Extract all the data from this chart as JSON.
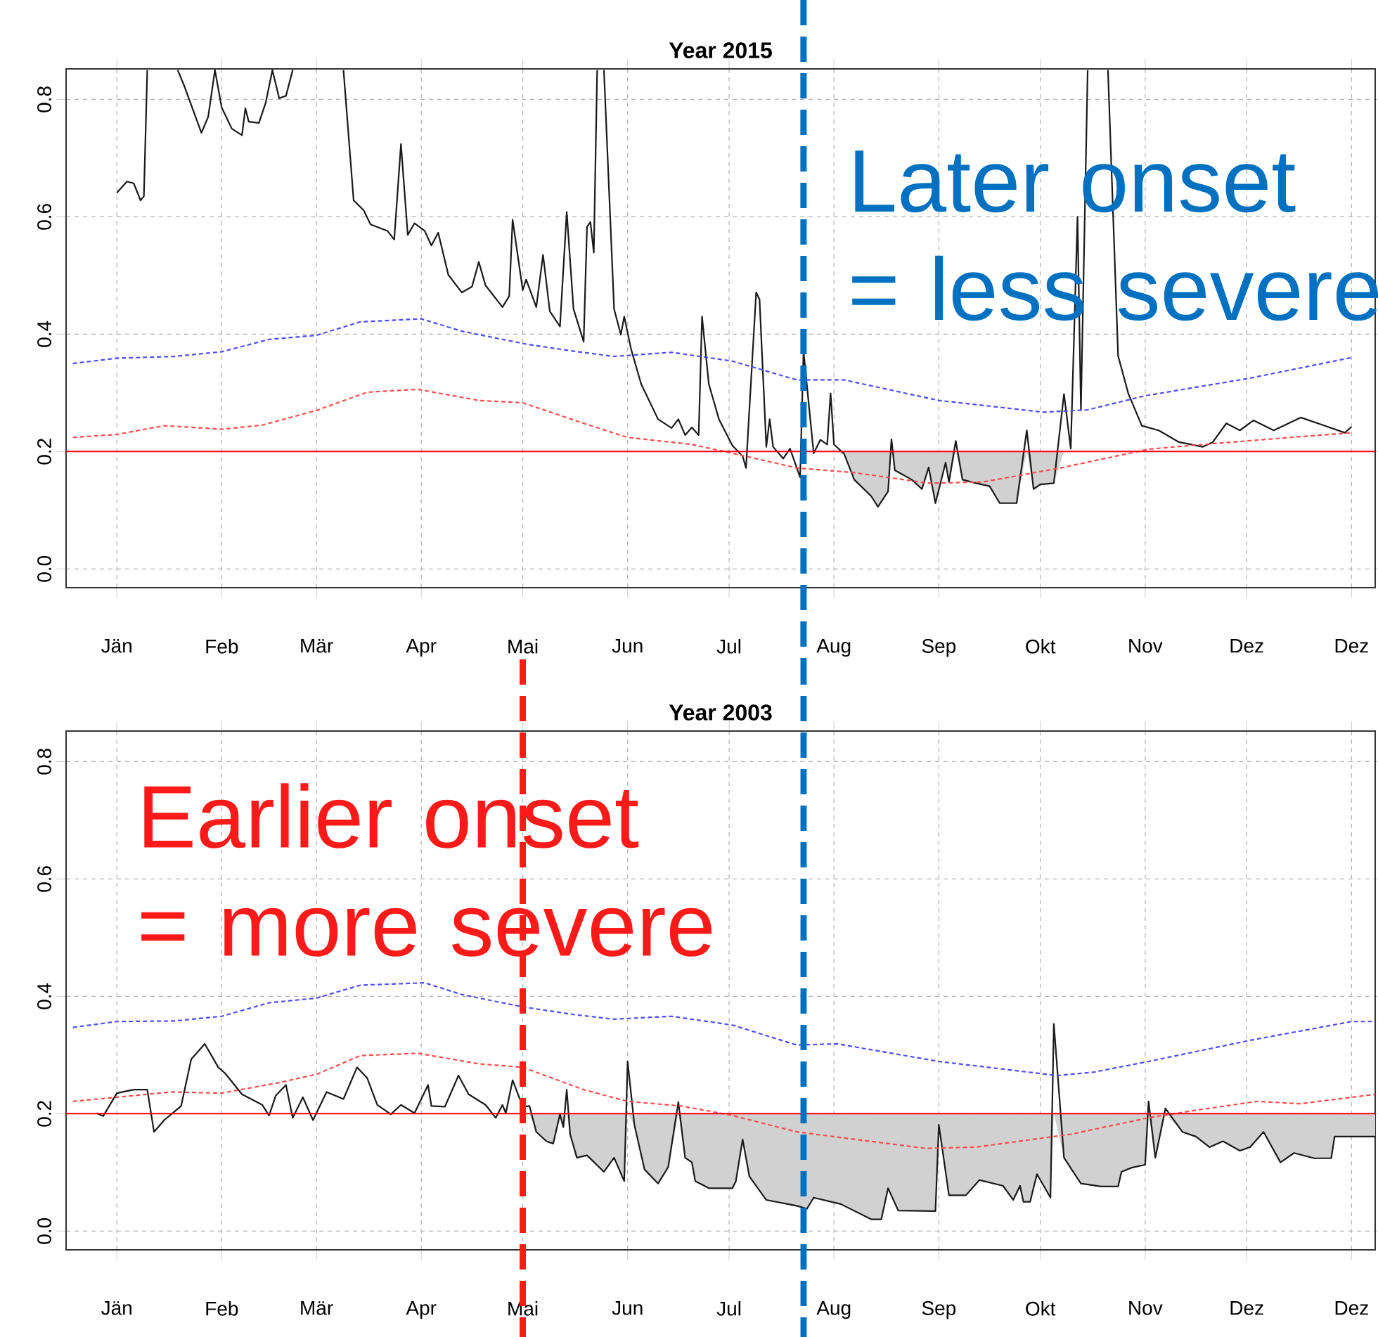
{
  "chart_data": [
    {
      "type": "line",
      "title": "Year 2015",
      "xlim": [
        "2014-12-17",
        "2016-01-08"
      ],
      "ylim": [
        -0.032,
        0.852
      ],
      "xticks": [
        {
          "value": "2015-01-01",
          "label": "Jän"
        },
        {
          "value": "2015-02-01",
          "label": "Feb"
        },
        {
          "value": "2015-03-01",
          "label": "Mär"
        },
        {
          "value": "2015-04-01",
          "label": "Apr"
        },
        {
          "value": "2015-05-01",
          "label": "Mai"
        },
        {
          "value": "2015-06-01",
          "label": "Jun"
        },
        {
          "value": "2015-07-01",
          "label": "Jul"
        },
        {
          "value": "2015-08-01",
          "label": "Aug"
        },
        {
          "value": "2015-09-01",
          "label": "Sep"
        },
        {
          "value": "2015-10-01",
          "label": "Okt"
        },
        {
          "value": "2015-11-01",
          "label": "Nov"
        },
        {
          "value": "2015-12-01",
          "label": "Dez"
        },
        {
          "value": "2016-01-01",
          "label": "Dez"
        }
      ],
      "yticks": [
        {
          "value": 0,
          "label": "0.0"
        },
        {
          "value": 0.2,
          "label": "0.2"
        },
        {
          "value": 0.4,
          "label": "0.4"
        },
        {
          "value": 0.6,
          "label": "0.6"
        },
        {
          "value": 0.8,
          "label": "0.8"
        }
      ],
      "grid": true,
      "series": [
        {
          "color": "#1a1a1a",
          "line_style": "solid",
          "x": [
            "2015-01-01",
            "2015-01-04",
            "2015-01-06",
            "2015-01-08",
            "2015-01-09",
            "2015-01-10",
            "2015-01-14",
            "2015-01-19",
            "2015-01-21",
            "2015-01-26",
            "2015-01-28",
            "2015-01-30",
            "2015-02-01",
            "2015-02-04",
            "2015-02-07",
            "2015-02-08",
            "2015-02-09",
            "2015-02-12",
            "2015-02-14",
            "2015-02-16",
            "2015-02-18",
            "2015-02-20",
            "2015-02-22",
            "2015-03-01",
            "2015-03-09",
            "2015-03-12",
            "2015-03-15",
            "2015-03-17",
            "2015-03-22",
            "2015-03-24",
            "2015-03-26",
            "2015-03-28",
            "2015-03-30",
            "2015-04-02",
            "2015-04-04",
            "2015-04-06",
            "2015-04-09",
            "2015-04-13",
            "2015-04-16",
            "2015-04-18",
            "2015-04-20",
            "2015-04-25",
            "2015-04-27",
            "2015-04-28",
            "2015-05-01",
            "2015-05-02",
            "2015-05-05",
            "2015-05-07",
            "2015-05-09",
            "2015-05-12",
            "2015-05-14",
            "2015-05-16",
            "2015-05-19",
            "2015-05-20",
            "2015-05-21",
            "2015-05-22",
            "2015-05-23",
            "2015-05-24",
            "2015-05-25",
            "2015-05-28",
            "2015-05-30",
            "2015-05-31",
            "2015-06-02",
            "2015-06-05",
            "2015-06-10",
            "2015-06-14",
            "2015-06-16",
            "2015-06-18",
            "2015-06-20",
            "2015-06-22",
            "2015-06-23",
            "2015-06-25",
            "2015-06-28",
            "2015-07-02",
            "2015-07-05",
            "2015-07-06",
            "2015-07-09",
            "2015-07-10",
            "2015-07-12",
            "2015-07-13",
            "2015-07-14",
            "2015-07-17",
            "2015-07-19",
            "2015-07-22",
            "2015-07-23",
            "2015-07-26",
            "2015-07-28",
            "2015-07-30",
            "2015-07-31",
            "2015-08-01",
            "2015-08-04",
            "2015-08-07",
            "2015-08-12",
            "2015-08-14",
            "2015-08-17",
            "2015-08-18",
            "2015-08-19",
            "2015-08-24",
            "2015-08-27",
            "2015-08-29",
            "2015-08-31",
            "2015-09-03",
            "2015-09-04",
            "2015-09-06",
            "2015-09-08",
            "2015-09-12",
            "2015-09-16",
            "2015-09-19",
            "2015-09-24",
            "2015-09-27",
            "2015-09-29",
            "2015-10-01",
            "2015-10-05",
            "2015-10-08",
            "2015-10-10",
            "2015-10-12",
            "2015-10-13",
            "2015-10-15",
            "2015-10-18",
            "2015-10-21",
            "2015-10-24",
            "2015-10-27",
            "2015-10-31",
            "2015-11-05",
            "2015-11-11",
            "2015-11-18",
            "2015-11-21",
            "2015-11-25",
            "2015-11-29",
            "2015-12-03",
            "2015-12-09",
            "2015-12-17",
            "2015-12-24",
            "2015-12-30",
            "2016-01-01"
          ],
          "values": [
            0.641,
            0.66,
            0.657,
            0.628,
            0.635,
            0.85,
            null,
            0.85,
            0.822,
            0.743,
            0.77,
            0.85,
            0.786,
            0.75,
            0.739,
            0.785,
            0.762,
            0.76,
            0.794,
            0.85,
            0.802,
            0.806,
            0.85,
            null,
            0.85,
            0.628,
            0.611,
            0.587,
            0.576,
            0.561,
            0.724,
            0.569,
            0.589,
            0.576,
            0.551,
            0.573,
            0.501,
            0.471,
            0.481,
            0.523,
            0.483,
            0.446,
            0.465,
            0.595,
            0.475,
            0.493,
            0.446,
            0.535,
            0.439,
            0.413,
            0.608,
            0.443,
            0.387,
            0.583,
            0.591,
            0.539,
            0.85,
            null,
            0.85,
            0.443,
            0.399,
            0.43,
            0.375,
            0.315,
            0.255,
            0.24,
            0.255,
            0.228,
            0.241,
            0.228,
            0.43,
            0.315,
            0.255,
            0.21,
            0.192,
            0.172,
            0.471,
            0.459,
            0.208,
            0.255,
            0.208,
            0.188,
            0.205,
            0.156,
            0.371,
            0.197,
            0.22,
            0.212,
            0.299,
            0.212,
            0.196,
            0.152,
            0.124,
            0.106,
            0.132,
            0.221,
            0.168,
            0.152,
            0.136,
            0.173,
            0.112,
            0.181,
            0.148,
            0.218,
            0.152,
            0.146,
            0.141,
            0.112,
            0.112,
            0.236,
            0.136,
            0.144,
            0.146,
            0.298,
            0.205,
            0.6,
            0.271,
            0.85,
            null,
            0.85,
            0.363,
            0.299,
            0.244,
            0.236,
            0.216,
            0.208,
            0.216,
            0.248,
            0.236,
            0.253,
            0.236,
            0.258,
            0.244,
            0.232,
            0.242
          ],
          "lower": [
            null,
            null,
            null,
            null,
            null,
            null,
            null,
            null,
            null,
            null,
            null,
            null,
            null,
            null,
            null,
            null,
            null,
            null,
            null,
            null,
            null,
            null,
            null,
            null,
            null,
            null,
            null,
            null,
            null,
            null,
            null,
            null,
            null,
            null,
            null,
            null,
            null,
            null,
            null,
            null,
            null,
            null,
            null,
            null,
            null,
            null,
            null,
            null,
            null,
            null,
            null,
            null,
            null,
            null,
            null,
            null,
            null,
            null,
            null,
            null,
            null,
            null,
            null,
            null,
            null,
            null,
            null,
            null,
            null,
            null,
            null,
            null,
            null,
            null,
            null,
            null,
            null,
            null,
            null,
            null,
            null,
            null,
            null,
            null,
            null,
            null,
            null,
            null,
            null,
            0.2,
            0.196,
            0.152,
            0.124,
            0.106,
            0.132,
            0.2,
            0.168,
            0.152,
            0.136,
            0.173,
            0.112,
            0.181,
            0.148,
            0.2,
            0.152,
            0.146,
            0.141,
            0.112,
            0.112,
            0.2,
            0.136,
            0.144,
            0.146,
            0.2,
            null,
            null,
            null,
            null,
            null,
            null,
            null,
            null,
            null,
            null,
            null,
            null,
            null,
            null,
            null,
            null,
            null,
            null,
            null,
            null,
            null
          ],
          "upper": [
            null,
            null,
            null,
            null,
            null,
            null,
            null,
            null,
            null,
            null,
            null,
            null,
            null,
            null,
            null,
            null,
            null,
            null,
            null,
            null,
            null,
            null,
            null,
            null,
            null,
            null,
            null,
            null,
            null,
            null,
            null,
            null,
            null,
            null,
            null,
            null,
            null,
            null,
            null,
            null,
            null,
            null,
            null,
            null,
            null,
            null,
            null,
            null,
            null,
            null,
            null,
            null,
            null,
            null,
            null,
            null,
            null,
            null,
            null,
            null,
            null,
            null,
            null,
            null,
            null,
            null,
            null,
            null,
            null,
            null,
            null,
            null,
            null,
            null,
            null,
            null,
            null,
            null,
            null,
            null,
            null,
            null,
            null,
            null,
            null,
            null,
            null,
            null,
            null,
            0.2,
            0.2,
            0.2,
            0.2,
            0.2,
            0.2,
            0.2,
            0.2,
            0.2,
            0.2,
            0.2,
            0.2,
            0.2,
            0.2,
            0.2,
            0.2,
            0.2,
            0.2,
            0.2,
            0.2,
            0.2,
            0.2,
            0.2,
            0.2,
            0.2,
            null,
            null,
            null,
            null,
            null,
            null,
            null,
            null,
            null,
            null,
            null,
            null,
            null,
            null,
            null,
            null,
            null,
            null,
            null,
            null,
            null
          ]
        },
        {
          "color": "#4d4dff",
          "line_style": "dashed",
          "x": [
            "2014-12-19",
            "2015-01-01",
            "2015-01-18",
            "2015-02-01",
            "2015-02-15",
            "2015-03-01",
            "2015-03-14",
            "2015-04-01",
            "2015-04-13",
            "2015-05-02",
            "2015-05-16",
            "2015-05-28",
            "2015-06-14",
            "2015-07-02",
            "2015-07-21",
            "2015-08-04",
            "2015-09-01",
            "2015-10-02",
            "2015-10-15",
            "2015-11-01",
            "2015-12-02",
            "2016-01-01"
          ],
          "values": [
            0.35,
            0.359,
            0.362,
            0.37,
            0.391,
            0.398,
            0.421,
            0.426,
            0.405,
            0.383,
            0.371,
            0.362,
            0.369,
            0.354,
            0.322,
            0.322,
            0.287,
            0.267,
            0.271,
            0.295,
            0.325,
            0.36
          ]
        },
        {
          "color": "#ff4d4d",
          "line_style": "dashed",
          "x": [
            "2014-12-19",
            "2015-01-01",
            "2015-01-15",
            "2015-02-01",
            "2015-02-13",
            "2015-03-01",
            "2015-03-16",
            "2015-03-31",
            "2015-04-18",
            "2015-05-01",
            "2015-05-19",
            "2015-06-01",
            "2015-06-20",
            "2015-07-02",
            "2015-07-21",
            "2015-08-07",
            "2015-08-29",
            "2015-09-14",
            "2015-10-07",
            "2015-11-02",
            "2015-11-18",
            "2015-12-14",
            "2016-01-01"
          ],
          "values": [
            0.224,
            0.229,
            0.244,
            0.238,
            0.245,
            0.27,
            0.301,
            0.306,
            0.287,
            0.283,
            0.248,
            0.224,
            0.212,
            0.197,
            0.172,
            0.164,
            0.146,
            0.148,
            0.172,
            0.204,
            0.212,
            0.224,
            0.232
          ]
        }
      ],
      "ref_lines": [
        {
          "axis": "y",
          "value": 0.2,
          "color": "#ff0000",
          "line_style": "solid"
        },
        {
          "axis": "x",
          "value": "2015-07-23",
          "color": "#0070c0",
          "line_style": "dashed",
          "label": "Later onset = less severe"
        }
      ]
    },
    {
      "type": "line",
      "title": "Year 2003",
      "xlim": [
        "2002-12-17",
        "2004-01-08"
      ],
      "ylim": [
        -0.032,
        0.852
      ],
      "xticks": [
        {
          "value": "2003-01-01",
          "label": "Jän"
        },
        {
          "value": "2003-02-01",
          "label": "Feb"
        },
        {
          "value": "2003-03-01",
          "label": "Mär"
        },
        {
          "value": "2003-04-01",
          "label": "Apr"
        },
        {
          "value": "2003-05-01",
          "label": "Mai"
        },
        {
          "value": "2003-06-01",
          "label": "Jun"
        },
        {
          "value": "2003-07-01",
          "label": "Jul"
        },
        {
          "value": "2003-08-01",
          "label": "Aug"
        },
        {
          "value": "2003-09-01",
          "label": "Sep"
        },
        {
          "value": "2003-10-01",
          "label": "Okt"
        },
        {
          "value": "2003-11-01",
          "label": "Nov"
        },
        {
          "value": "2003-12-01",
          "label": "Dez"
        },
        {
          "value": "2004-01-01",
          "label": "Dez"
        }
      ],
      "yticks": [
        {
          "value": 0,
          "label": "0.0"
        },
        {
          "value": 0.2,
          "label": "0.2"
        },
        {
          "value": 0.4,
          "label": "0.4"
        },
        {
          "value": 0.6,
          "label": "0.6"
        },
        {
          "value": 0.8,
          "label": "0.8"
        }
      ],
      "grid": true,
      "series": [
        {
          "color": "#1a1a1a",
          "line_style": "solid",
          "x": [
            "2002-12-26",
            "2002-12-28",
            "2003-01-01",
            "2003-01-06",
            "2003-01-10",
            "2003-01-12",
            "2003-01-15",
            "2003-01-20",
            "2003-01-23",
            "2003-01-27",
            "2003-01-31",
            "2003-02-02",
            "2003-02-07",
            "2003-02-13",
            "2003-02-15",
            "2003-02-17",
            "2003-02-20",
            "2003-02-22",
            "2003-02-25",
            "2003-02-28",
            "2003-03-04",
            "2003-03-09",
            "2003-03-13",
            "2003-03-16",
            "2003-03-19",
            "2003-03-23",
            "2003-03-26",
            "2003-03-30",
            "2003-04-03",
            "2003-04-04",
            "2003-04-08",
            "2003-04-12",
            "2003-04-15",
            "2003-04-20",
            "2003-04-23",
            "2003-04-25",
            "2003-04-26",
            "2003-04-28",
            "2003-05-01",
            "2003-05-03",
            "2003-05-05",
            "2003-05-08",
            "2003-05-10",
            "2003-05-12",
            "2003-05-13",
            "2003-05-14",
            "2003-05-15",
            "2003-05-17",
            "2003-05-20",
            "2003-05-25",
            "2003-05-28",
            "2003-05-31",
            "2003-06-01",
            "2003-06-03",
            "2003-06-06",
            "2003-06-10",
            "2003-06-13",
            "2003-06-16",
            "2003-06-18",
            "2003-06-20",
            "2003-06-21",
            "2003-06-25",
            "2003-07-02",
            "2003-07-03",
            "2003-07-05",
            "2003-07-07",
            "2003-07-12",
            "2003-07-21",
            "2003-07-24",
            "2003-07-26",
            "2003-08-03",
            "2003-08-12",
            "2003-08-15",
            "2003-08-17",
            "2003-08-20",
            "2003-08-31",
            "2003-09-01",
            "2003-09-04",
            "2003-09-09",
            "2003-09-13",
            "2003-09-20",
            "2003-09-23",
            "2003-09-25",
            "2003-09-26",
            "2003-09-28",
            "2003-09-30",
            "2003-10-04",
            "2003-10-05",
            "2003-10-08",
            "2003-10-13",
            "2003-10-19",
            "2003-10-24",
            "2003-10-25",
            "2003-10-28",
            "2003-11-01",
            "2003-11-02",
            "2003-11-04",
            "2003-11-07",
            "2003-11-12",
            "2003-11-16",
            "2003-11-20",
            "2003-11-24",
            "2003-11-29",
            "2003-12-02",
            "2003-12-06",
            "2003-12-11",
            "2003-12-15",
            "2003-12-21",
            "2003-12-26",
            "2003-12-27",
            "2004-01-08"
          ],
          "values": [
            0.201,
            0.196,
            0.235,
            0.241,
            0.241,
            0.169,
            0.189,
            0.213,
            0.293,
            0.319,
            0.279,
            0.269,
            0.233,
            0.215,
            0.197,
            0.231,
            0.249,
            0.193,
            0.228,
            0.189,
            0.237,
            0.225,
            0.279,
            0.261,
            0.215,
            0.199,
            0.215,
            0.201,
            0.249,
            0.213,
            0.212,
            0.265,
            0.233,
            0.215,
            0.193,
            0.215,
            0.201,
            0.257,
            0.212,
            0.213,
            0.169,
            0.153,
            0.149,
            0.199,
            0.177,
            0.241,
            0.165,
            0.125,
            0.129,
            0.101,
            0.125,
            0.085,
            0.289,
            0.181,
            0.105,
            0.081,
            0.109,
            0.22,
            0.125,
            0.117,
            0.085,
            0.073,
            0.073,
            0.085,
            0.156,
            0.093,
            0.053,
            0.043,
            0.038,
            0.057,
            0.046,
            0.02,
            0.02,
            0.073,
            0.035,
            0.034,
            0.181,
            0.061,
            0.061,
            0.087,
            0.077,
            0.053,
            0.077,
            0.05,
            0.05,
            0.097,
            0.057,
            0.353,
            0.125,
            0.081,
            0.076,
            0.076,
            0.101,
            0.108,
            0.113,
            0.221,
            0.125,
            0.209,
            0.169,
            0.161,
            0.143,
            0.153,
            0.137,
            0.143,
            0.169,
            0.117,
            0.133,
            0.124,
            0.124,
            0.161,
            0.161
          ],
          "lower": [
            null,
            null,
            null,
            null,
            null,
            null,
            null,
            null,
            null,
            null,
            null,
            null,
            null,
            null,
            null,
            null,
            null,
            null,
            null,
            null,
            null,
            null,
            null,
            null,
            null,
            null,
            null,
            null,
            null,
            null,
            null,
            null,
            null,
            null,
            null,
            null,
            null,
            null,
            null,
            0.2,
            0.169,
            0.153,
            0.149,
            0.199,
            0.177,
            0.2,
            0.165,
            0.125,
            0.129,
            0.101,
            0.125,
            0.085,
            0.2,
            0.181,
            0.105,
            0.081,
            0.109,
            0.2,
            0.125,
            0.117,
            0.085,
            0.073,
            0.073,
            0.085,
            0.156,
            0.093,
            0.053,
            0.043,
            0.038,
            0.057,
            0.046,
            0.02,
            0.02,
            0.073,
            0.035,
            0.034,
            0.181,
            0.061,
            0.061,
            0.087,
            0.077,
            0.053,
            0.077,
            0.05,
            0.05,
            0.097,
            0.057,
            0.2,
            0.125,
            0.081,
            0.076,
            0.076,
            0.101,
            0.108,
            0.113,
            0.2,
            0.125,
            0.2,
            0.169,
            0.161,
            0.143,
            0.153,
            0.137,
            0.143,
            0.169,
            0.117,
            0.133,
            0.124,
            0.124,
            0.161,
            0.161
          ],
          "upper": [
            null,
            null,
            null,
            null,
            null,
            null,
            null,
            null,
            null,
            null,
            null,
            null,
            null,
            null,
            null,
            null,
            null,
            null,
            null,
            null,
            null,
            null,
            null,
            null,
            null,
            null,
            null,
            null,
            null,
            null,
            null,
            null,
            null,
            null,
            null,
            null,
            null,
            null,
            null,
            0.2,
            0.2,
            0.2,
            0.2,
            0.2,
            0.2,
            0.2,
            0.2,
            0.2,
            0.2,
            0.2,
            0.2,
            0.2,
            0.2,
            0.2,
            0.2,
            0.2,
            0.2,
            0.2,
            0.2,
            0.2,
            0.2,
            0.2,
            0.2,
            0.2,
            0.2,
            0.2,
            0.2,
            0.2,
            0.2,
            0.2,
            0.2,
            0.2,
            0.2,
            0.2,
            0.2,
            0.2,
            0.2,
            0.2,
            0.2,
            0.2,
            0.2,
            0.2,
            0.2,
            0.2,
            0.2,
            0.2,
            0.2,
            0.2,
            0.2,
            0.2,
            0.2,
            0.2,
            0.2,
            0.2,
            0.2,
            0.2,
            0.2,
            0.2,
            0.2,
            0.2,
            0.2,
            0.2,
            0.2,
            0.2,
            0.2,
            0.2,
            0.2,
            0.2,
            0.2,
            0.2,
            0.2
          ]
        },
        {
          "color": "#4d4dff",
          "line_style": "dashed",
          "x": [
            "2002-12-19",
            "2003-01-01",
            "2003-01-18",
            "2003-02-01",
            "2003-02-15",
            "2003-03-01",
            "2003-03-14",
            "2003-04-02",
            "2003-04-13",
            "2003-05-01",
            "2003-05-16",
            "2003-05-28",
            "2003-06-14",
            "2003-07-02",
            "2003-07-21",
            "2003-08-02",
            "2003-09-01",
            "2003-10-06",
            "2003-10-17",
            "2003-11-02",
            "2003-12-02",
            "2004-01-01",
            "2004-01-08"
          ],
          "values": [
            0.347,
            0.357,
            0.358,
            0.366,
            0.389,
            0.397,
            0.419,
            0.423,
            0.403,
            0.382,
            0.369,
            0.361,
            0.366,
            0.351,
            0.317,
            0.319,
            0.289,
            0.265,
            0.271,
            0.289,
            0.325,
            0.357,
            0.357
          ]
        },
        {
          "color": "#ff4d4d",
          "line_style": "dashed",
          "x": [
            "2002-12-19",
            "2003-01-01",
            "2003-01-17",
            "2003-02-01",
            "2003-02-18",
            "2003-03-01",
            "2003-03-14",
            "2003-03-31",
            "2003-04-18",
            "2003-05-01",
            "2003-05-19",
            "2003-06-01",
            "2003-06-17",
            "2003-07-02",
            "2003-07-21",
            "2003-08-28",
            "2003-09-12",
            "2003-10-10",
            "2003-11-02",
            "2003-11-15",
            "2003-12-04",
            "2003-12-17",
            "2004-01-08"
          ],
          "values": [
            0.221,
            0.228,
            0.237,
            0.235,
            0.253,
            0.267,
            0.299,
            0.303,
            0.285,
            0.279,
            0.241,
            0.221,
            0.213,
            0.197,
            0.169,
            0.141,
            0.143,
            0.165,
            0.193,
            0.205,
            0.221,
            0.217,
            0.233
          ]
        }
      ],
      "ref_lines": [
        {
          "axis": "y",
          "value": 0.2,
          "color": "#ff0000",
          "line_style": "solid"
        },
        {
          "axis": "x",
          "value": "2003-05-01",
          "color": "#ff1a1a",
          "line_style": "dashed",
          "label": "Earlier onset = more severe"
        },
        {
          "axis": "x",
          "value": "2003-07-23",
          "color": "#0070c0",
          "line_style": "dashed"
        }
      ]
    }
  ]
}
